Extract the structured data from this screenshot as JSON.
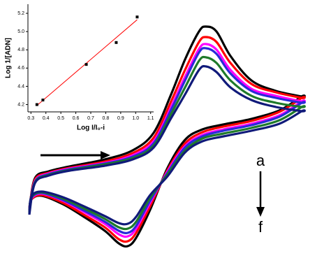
{
  "chart_data": [
    {
      "type": "line",
      "xlim": [
        0,
        400
      ],
      "ylim": [
        0,
        340
      ],
      "x": [
        4,
        12,
        32,
        62,
        112,
        152,
        182,
        207,
        227,
        247,
        257,
        272,
        292,
        322,
        357,
        394,
        394,
        362,
        322,
        282,
        252,
        227,
        202,
        177,
        157,
        145,
        132,
        112,
        82,
        52,
        22,
        7,
        4
      ],
      "series": [
        {
          "color": "#000000",
          "values": [
            65,
            110,
            120,
            127,
            137,
            150,
            175,
            230,
            280,
            320,
            327,
            320,
            285,
            250,
            235,
            227,
            227,
            207,
            195,
            187,
            180,
            165,
            125,
            65,
            25,
            13,
            17,
            35,
            55,
            73,
            85,
            80,
            65
          ]
        },
        {
          "color": "#ff0000",
          "values": [
            65,
            108,
            118,
            125,
            134,
            146,
            168,
            220,
            265,
            305,
            312,
            305,
            275,
            245,
            233,
            225,
            225,
            205,
            192,
            184,
            176,
            160,
            122,
            70,
            32,
            20,
            23,
            40,
            58,
            75,
            86,
            80,
            65
          ]
        },
        {
          "color": "#ff00ff",
          "values": [
            63,
            106,
            117,
            124,
            132,
            143,
            163,
            212,
            255,
            295,
            302,
            294,
            265,
            238,
            228,
            220,
            220,
            200,
            188,
            180,
            172,
            156,
            120,
            75,
            38,
            27,
            30,
            45,
            62,
            78,
            88,
            81,
            63
          ]
        },
        {
          "color": "#2a2ad8",
          "values": [
            62,
            105,
            116,
            123,
            131,
            141,
            160,
            208,
            250,
            290,
            296,
            288,
            260,
            235,
            225,
            218,
            218,
            198,
            186,
            178,
            170,
            154,
            118,
            78,
            42,
            32,
            35,
            48,
            64,
            79,
            89,
            82,
            62
          ]
        },
        {
          "color": "#1e7a2a",
          "values": [
            60,
            104,
            115,
            122,
            130,
            139,
            157,
            202,
            240,
            278,
            283,
            275,
            250,
            228,
            218,
            212,
            212,
            193,
            182,
            174,
            167,
            150,
            116,
            82,
            48,
            38,
            40,
            52,
            67,
            81,
            90,
            83,
            60
          ]
        },
        {
          "color": "#101a7a",
          "values": [
            58,
            103,
            114,
            121,
            128,
            137,
            154,
            196,
            230,
            265,
            270,
            262,
            240,
            222,
            212,
            206,
            206,
            188,
            178,
            170,
            163,
            147,
            113,
            86,
            55,
            45,
            46,
            56,
            70,
            83,
            91,
            84,
            58
          ]
        }
      ],
      "annotations": [
        "a",
        "f"
      ]
    },
    {
      "type": "scatter",
      "x_label": "Log I/I₀-i",
      "y_label": "Log 1/[ADN]",
      "xlim": [
        0.28,
        1.12
      ],
      "ylim": [
        4.12,
        5.3
      ],
      "xticks": [
        0.3,
        0.4,
        0.5,
        0.6,
        0.7,
        0.8,
        0.9,
        {
          "value": 1,
          "label": "1.0"
        },
        1.1
      ],
      "yticks": [
        4.2,
        4.4,
        4.6,
        4.8,
        {
          "value": 5,
          "label": "5.0"
        },
        5.2
      ],
      "points": {
        "color": "#000000",
        "x": [
          0.34,
          0.38,
          0.67,
          0.87,
          1.01
        ],
        "values": [
          4.2,
          4.25,
          4.64,
          4.88,
          5.16
        ]
      },
      "fit": {
        "color": "#ff0000",
        "x": [
          0.34,
          1.01
        ],
        "values": [
          4.19,
          5.13
        ]
      }
    }
  ]
}
